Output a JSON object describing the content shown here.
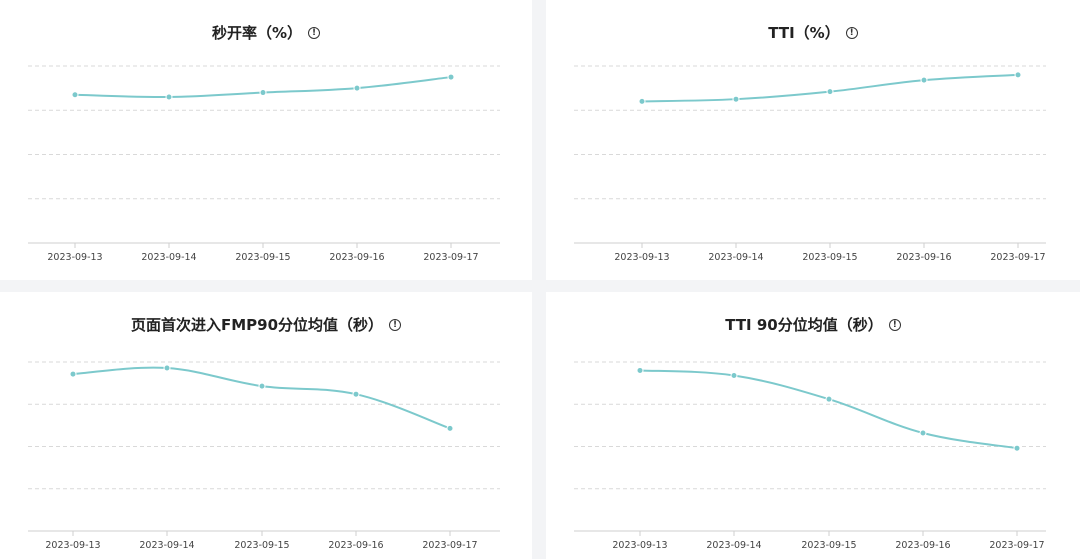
{
  "charts": {
    "c0": {
      "title": "秒开率（%）",
      "info_icon": "info-circle-icon"
    },
    "c1": {
      "title": "TTI（%）",
      "info_icon": "info-circle-icon"
    },
    "c2": {
      "title": "页面首次进入FMP90分位均值（秒）",
      "info_icon": "info-circle-icon"
    },
    "c3": {
      "title": "TTI 90分位均值（秒）",
      "info_icon": "info-circle-icon"
    }
  },
  "chart_data": [
    {
      "type": "line",
      "title": "秒开率（%）",
      "x": [
        "2023-09-13",
        "2023-09-14",
        "2023-09-15",
        "2023-09-16",
        "2023-09-17"
      ],
      "series": [
        {
          "values": [
            3.35,
            3.3,
            3.4,
            3.5,
            3.75
          ]
        }
      ],
      "ylim": [
        0,
        4
      ],
      "grid": true,
      "line_color": "#7cc9cc"
    },
    {
      "type": "line",
      "title": "TTI（%）",
      "x": [
        "2023-09-13",
        "2023-09-14",
        "2023-09-15",
        "2023-09-16",
        "2023-09-17"
      ],
      "series": [
        {
          "values": [
            3.2,
            3.25,
            3.42,
            3.68,
            3.8
          ]
        }
      ],
      "ylim": [
        0,
        4
      ],
      "grid": true,
      "line_color": "#7cc9cc"
    },
    {
      "type": "line",
      "title": "页面首次进入FMP90分位均值（秒）",
      "x": [
        "2023-09-13",
        "2023-09-14",
        "2023-09-15",
        "2023-09-16",
        "2023-09-17"
      ],
      "series": [
        {
          "values": [
            3.9,
            4.05,
            3.6,
            3.4,
            2.55
          ]
        }
      ],
      "ylim": [
        0,
        4.2
      ],
      "grid": true,
      "line_color": "#7cc9cc"
    },
    {
      "type": "line",
      "title": "TTI 90分位均值（秒）",
      "x": [
        "2023-09-13",
        "2023-09-14",
        "2023-09-15",
        "2023-09-16",
        "2023-09-17"
      ],
      "series": [
        {
          "values": [
            4.75,
            4.6,
            3.9,
            2.9,
            2.45
          ]
        }
      ],
      "ylim": [
        0,
        5
      ],
      "grid": true,
      "line_color": "#7cc9cc"
    }
  ]
}
